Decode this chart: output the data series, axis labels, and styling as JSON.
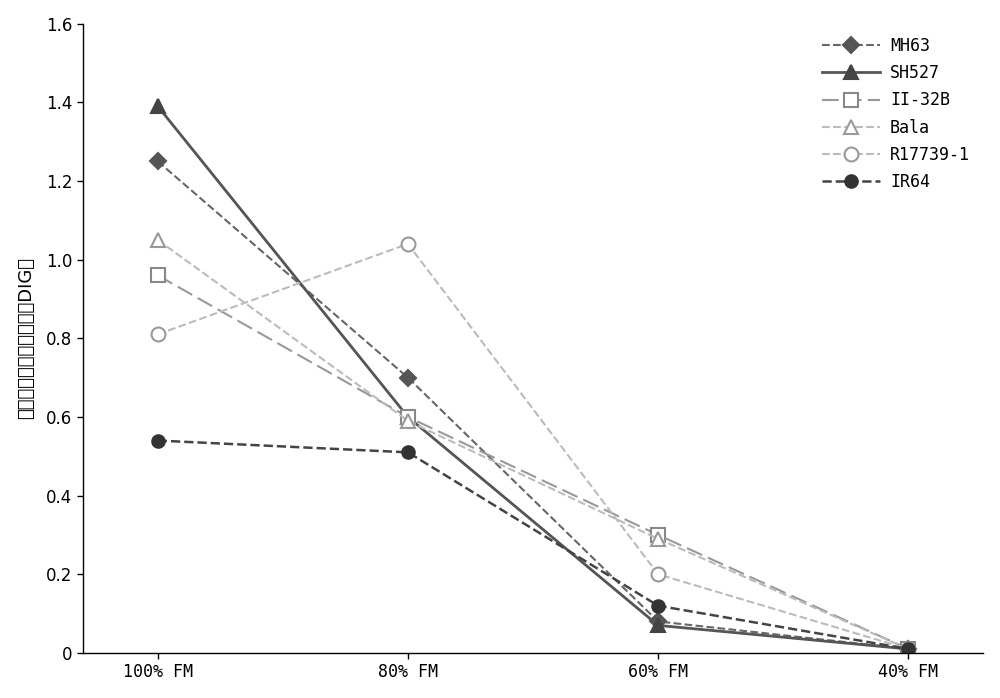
{
  "x_labels": [
    "100% FM",
    "80% FM",
    "60% FM",
    "40% FM"
  ],
  "x_positions": [
    0,
    1,
    2,
    3
  ],
  "series": [
    {
      "name": "MH63",
      "values": [
        1.25,
        0.7,
        0.08,
        0.01
      ],
      "color": "#666666",
      "linestyle": "dashed",
      "marker": "D",
      "markersize": 8,
      "markerfacecolor": "#555555",
      "markeredgecolor": "#555555",
      "linewidth": 1.5
    },
    {
      "name": "SH527",
      "values": [
        1.39,
        0.6,
        0.07,
        0.01
      ],
      "color": "#555555",
      "linestyle": "solid",
      "marker": "^",
      "markersize": 10,
      "markerfacecolor": "#444444",
      "markeredgecolor": "#444444",
      "linewidth": 2.0
    },
    {
      "name": "II-32B",
      "values": [
        0.96,
        0.6,
        0.3,
        0.01
      ],
      "color": "#999999",
      "linestyle": "dashed",
      "marker": "s",
      "markersize": 10,
      "markerfacecolor": "#ffffff",
      "markeredgecolor": "#888888",
      "linewidth": 1.5,
      "dashes": [
        8,
        3
      ]
    },
    {
      "name": "Bala",
      "values": [
        1.05,
        0.59,
        0.29,
        0.01
      ],
      "color": "#bbbbbb",
      "linestyle": "dashed",
      "marker": "^",
      "markersize": 10,
      "markerfacecolor": "#ffffff",
      "markeredgecolor": "#999999",
      "linewidth": 1.5
    },
    {
      "name": "R17739-1",
      "values": [
        0.81,
        1.04,
        0.2,
        0.01
      ],
      "color": "#bbbbbb",
      "linestyle": "dashed",
      "marker": "o",
      "markersize": 10,
      "markerfacecolor": "#ffffff",
      "markeredgecolor": "#999999",
      "linewidth": 1.5
    },
    {
      "name": "IR64",
      "values": [
        0.54,
        0.51,
        0.12,
        0.01
      ],
      "color": "#444444",
      "linestyle": "dashed",
      "marker": "o",
      "markersize": 9,
      "markerfacecolor": "#333333",
      "markeredgecolor": "#333333",
      "linewidth": 1.8
    }
  ],
  "ylabel_chinese": "单株粒粒产量抗旱指数（DIG）",
  "ylim": [
    0,
    1.6
  ],
  "yticks": [
    0,
    0.2,
    0.4,
    0.6,
    0.8,
    1.0,
    1.2,
    1.4,
    1.6
  ],
  "legend_fontsize": 12,
  "ylabel_fontsize": 13,
  "tick_fontsize": 12,
  "background_color": "#ffffff"
}
